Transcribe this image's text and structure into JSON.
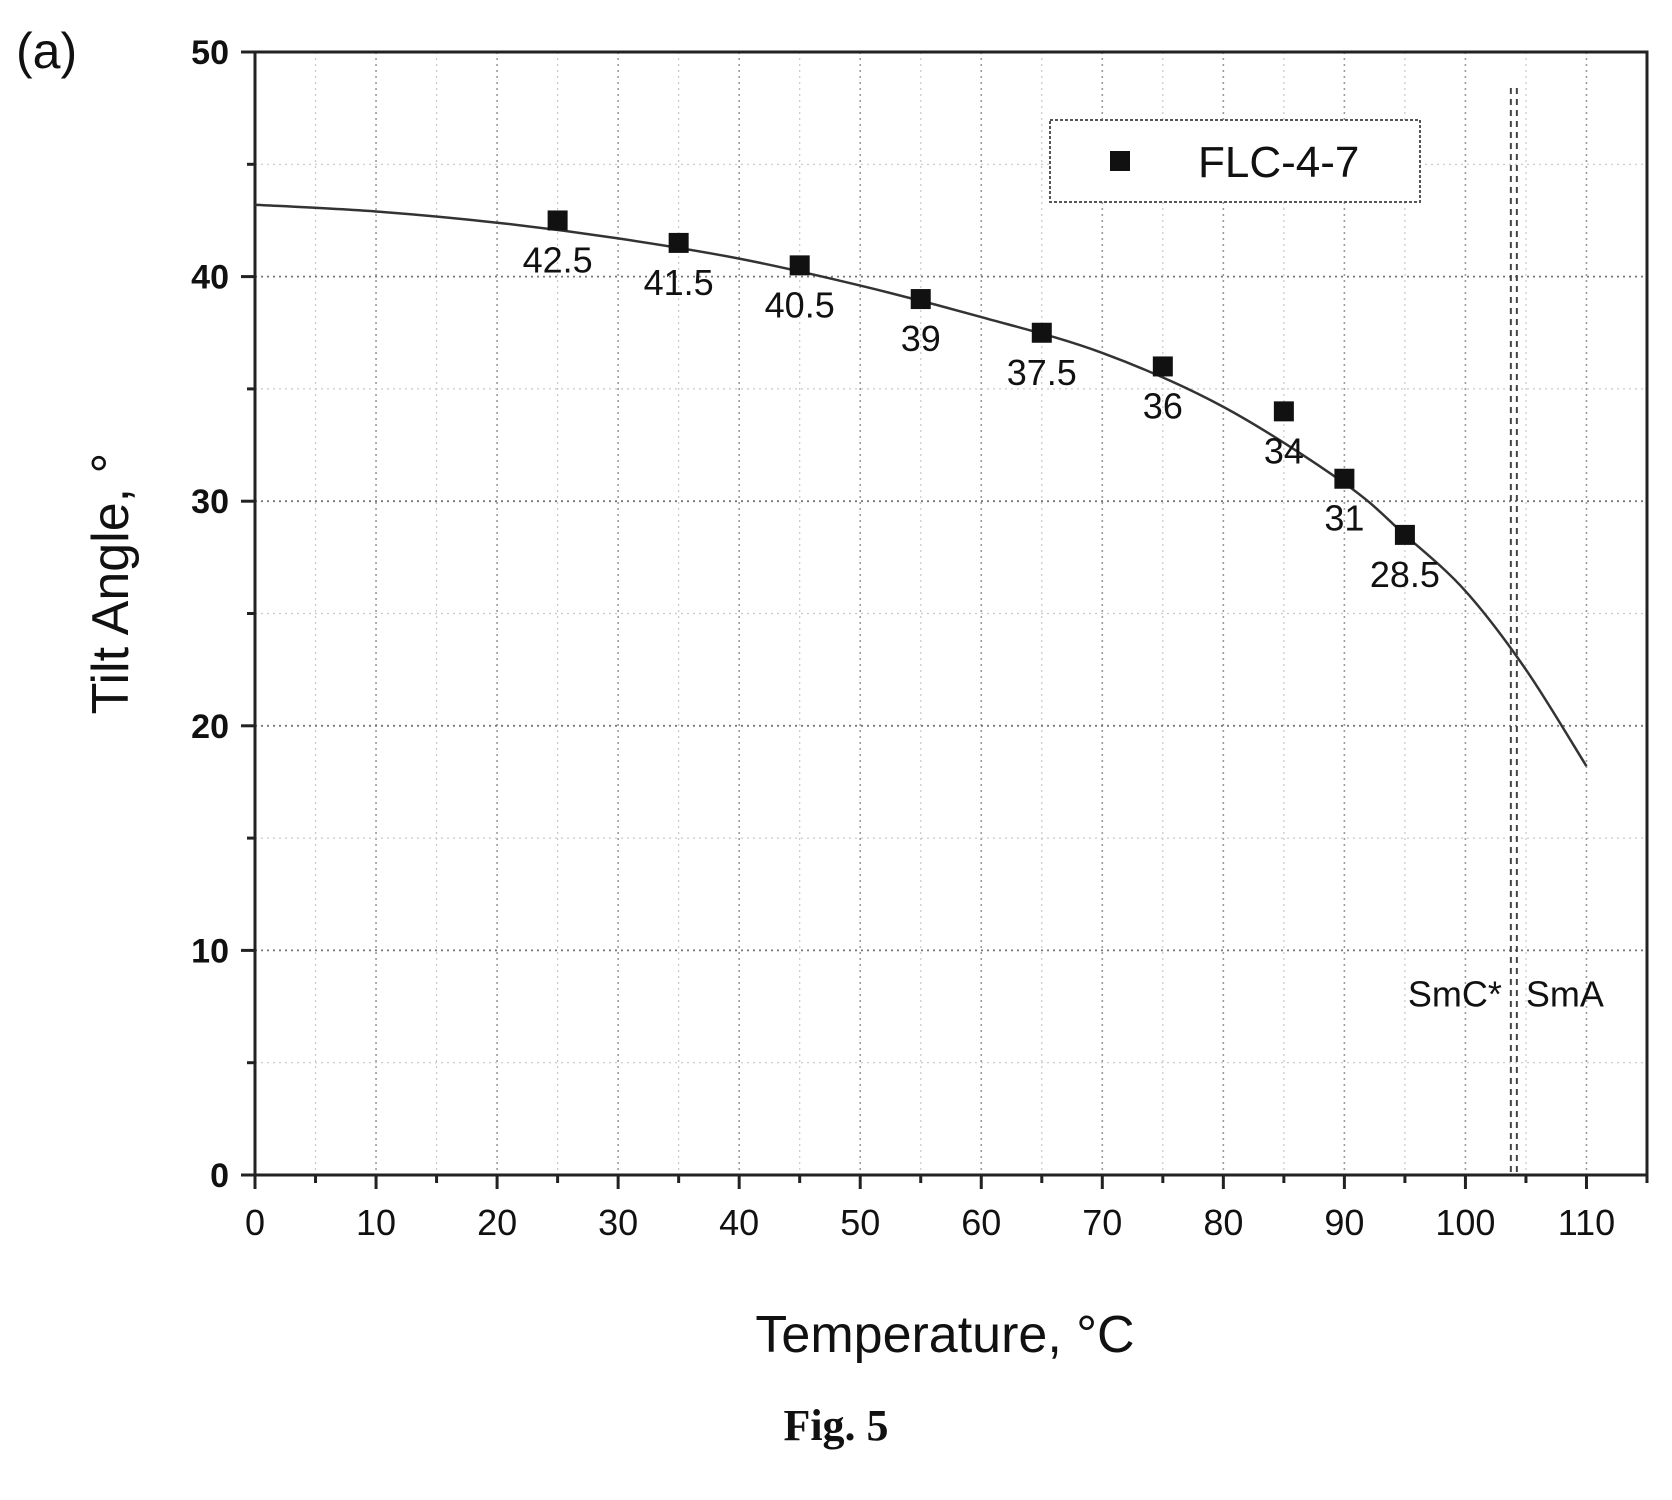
{
  "chart_data": {
    "type": "scatter",
    "panel_label": "(a)",
    "xlabel": "Temperature, °C",
    "ylabel": "Tilt Angle, °",
    "xlim": [
      0,
      115
    ],
    "ylim": [
      0,
      50
    ],
    "x_ticks": [
      0,
      10,
      20,
      30,
      40,
      50,
      60,
      70,
      80,
      90,
      100,
      110
    ],
    "y_ticks": [
      0,
      10,
      20,
      30,
      40,
      50
    ],
    "grid": true,
    "legend_position": "top-right",
    "series": [
      {
        "name": "FLC-4-7",
        "x": [
          25,
          35,
          45,
          55,
          65,
          75,
          85,
          90,
          95
        ],
        "y": [
          42.5,
          41.5,
          40.5,
          39,
          37.5,
          36,
          34,
          31,
          28.5
        ],
        "labels": [
          "42.5",
          "41.5",
          "40.5",
          "39",
          "37.5",
          "36",
          "34",
          "31",
          "28.5"
        ]
      }
    ],
    "fit_curve": {
      "x": [
        0,
        10,
        20,
        30,
        40,
        50,
        60,
        70,
        80,
        90,
        95,
        100,
        105,
        110
      ],
      "y": [
        43.2,
        42.9,
        42.4,
        41.7,
        40.8,
        39.6,
        38.2,
        36.6,
        34.2,
        30.8,
        28.5,
        26.0,
        22.5,
        18.2
      ]
    },
    "phase_boundary": {
      "x": 104,
      "left_label": "SmC*",
      "right_label": "SmA"
    },
    "caption": "Fig. 5"
  }
}
